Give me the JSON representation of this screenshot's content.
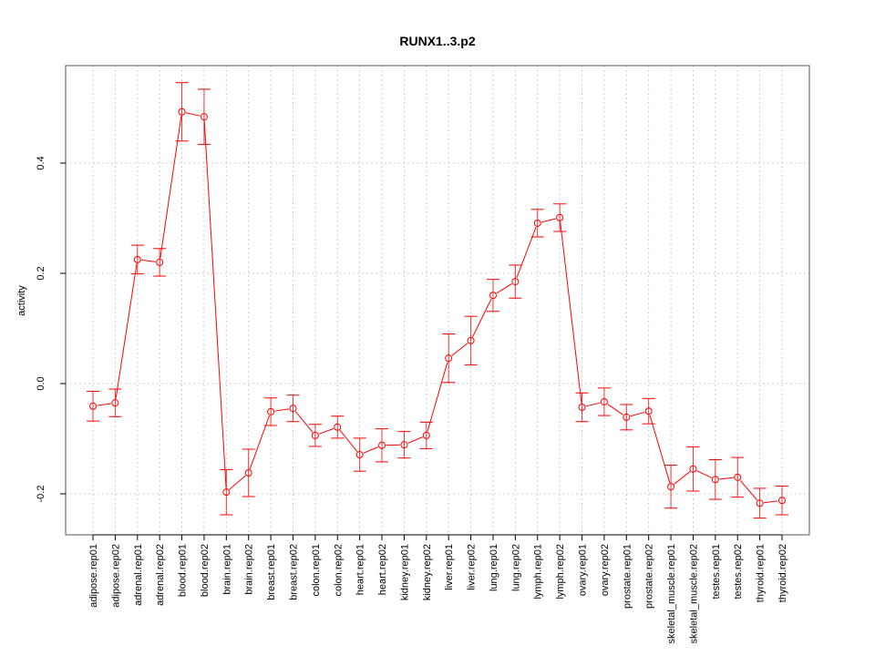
{
  "chart_data": {
    "type": "line",
    "title": "RUNX1..3.p2",
    "xlabel": "",
    "ylabel": "activity",
    "ylim": [
      -0.274,
      0.577
    ],
    "yticks": [
      -0.2,
      0.0,
      0.2,
      0.4
    ],
    "ytick_labels": [
      "-0.2",
      "0.0",
      "0.2",
      "0.4"
    ],
    "grid": true,
    "color": "#ff0000",
    "categories": [
      "adipose.rep01",
      "adipose.rep02",
      "adrenal.rep01",
      "adrenal.rep02",
      "blood.rep01",
      "blood.rep02",
      "brain.rep01",
      "brain.rep02",
      "breast.rep01",
      "breast.rep02",
      "colon.rep01",
      "colon.rep02",
      "heart.rep01",
      "heart.rep02",
      "kidney.rep01",
      "kidney.rep02",
      "liver.rep01",
      "liver.rep02",
      "lung.rep01",
      "lung.rep02",
      "lymph.rep01",
      "lymph.rep02",
      "ovary.rep01",
      "ovary.rep02",
      "prostate.rep01",
      "prostate.rep02",
      "skeletal_muscle.rep01",
      "skeletal_muscle.rep02",
      "testes.rep01",
      "testes.rep02",
      "thyroid.rep01",
      "thyroid.rep02"
    ],
    "values": [
      -0.041,
      -0.035,
      0.225,
      0.22,
      0.493,
      0.484,
      -0.197,
      -0.162,
      -0.051,
      -0.045,
      -0.094,
      -0.079,
      -0.129,
      -0.112,
      -0.111,
      -0.094,
      0.046,
      0.078,
      0.16,
      0.185,
      0.291,
      0.301,
      -0.043,
      -0.033,
      -0.061,
      -0.05,
      -0.187,
      -0.155,
      -0.174,
      -0.17,
      -0.217,
      -0.212
    ],
    "errors": [
      0.027,
      0.025,
      0.026,
      0.025,
      0.053,
      0.05,
      0.041,
      0.043,
      0.025,
      0.024,
      0.02,
      0.02,
      0.03,
      0.03,
      0.024,
      0.024,
      0.044,
      0.044,
      0.029,
      0.03,
      0.025,
      0.025,
      0.026,
      0.025,
      0.023,
      0.023,
      0.039,
      0.04,
      0.036,
      0.036,
      0.027,
      0.026
    ]
  }
}
